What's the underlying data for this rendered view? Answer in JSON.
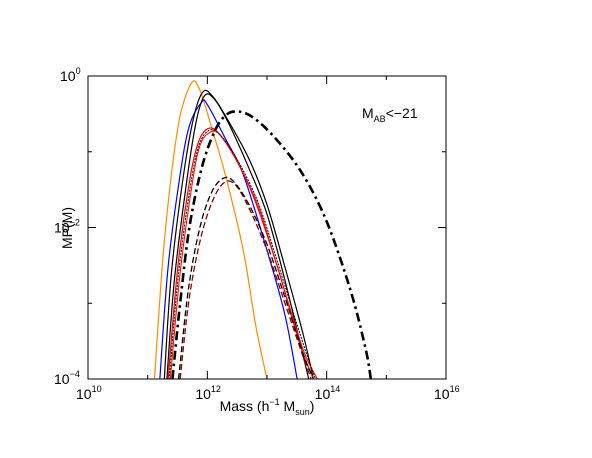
{
  "chart_data": {
    "type": "line",
    "title": "",
    "xlabel": {
      "main": "Mass (h",
      "exp": "−1",
      "mid": " M",
      "sub": "sun",
      "end": ")"
    },
    "ylabel": "MP(M)",
    "xscale": "log",
    "yscale": "log",
    "xlim": [
      10000000000.0,
      1e+16
    ],
    "ylim": [
      0.0001,
      1
    ],
    "x_ticks": [
      {
        "value": 10000000000.0,
        "base": "10",
        "exp": "10"
      },
      {
        "value": 1000000000000.0,
        "base": "10",
        "exp": "12"
      },
      {
        "value": 100000000000000.0,
        "base": "10",
        "exp": "14"
      },
      {
        "value": 1e+16,
        "base": "10",
        "exp": "16"
      }
    ],
    "y_ticks": [
      {
        "value": 1,
        "base": "10",
        "exp": "0"
      },
      {
        "value": 0.01,
        "base": "10",
        "exp": "−2"
      },
      {
        "value": 0.0001,
        "base": "10",
        "exp": "−4"
      }
    ],
    "annotation": {
      "main": "M",
      "sub": "AB",
      "rest": "<−21"
    },
    "grid": false,
    "legend": "none",
    "series": [
      {
        "color": "#ff8c00",
        "style": "solid",
        "width": 1.2,
        "points": [
          [
            130000000000.0,
            0.0001
          ],
          [
            180000000000.0,
            0.004
          ],
          [
            250000000000.0,
            0.05
          ],
          [
            350000000000.0,
            0.3
          ],
          [
            550000000000.0,
            0.82
          ],
          [
            750000000000.0,
            0.65
          ],
          [
            1200000000000.0,
            0.2
          ],
          [
            2000000000000.0,
            0.05
          ],
          [
            4000000000000.0,
            0.005
          ],
          [
            6500000000000.0,
            0.0005
          ],
          [
            10000000000000.0,
            0.0001
          ]
        ]
      },
      {
        "color": "#0000ff",
        "style": "solid",
        "width": 1.2,
        "points": [
          [
            160000000000.0,
            0.0001
          ],
          [
            220000000000.0,
            0.003
          ],
          [
            350000000000.0,
            0.05
          ],
          [
            500000000000.0,
            0.22
          ],
          [
            800000000000.0,
            0.45
          ],
          [
            1000000000000.0,
            0.42
          ],
          [
            2000000000000.0,
            0.15
          ],
          [
            4000000000000.0,
            0.05
          ],
          [
            10000000000000.0,
            0.005
          ],
          [
            20000000000000.0,
            0.0007
          ],
          [
            32000000000000.0,
            0.0001
          ]
        ]
      },
      {
        "color": "#000000",
        "style": "solid",
        "width": 1.2,
        "points": [
          [
            190000000000.0,
            0.0001
          ],
          [
            250000000000.0,
            0.0025
          ],
          [
            400000000000.0,
            0.05
          ],
          [
            600000000000.0,
            0.3
          ],
          [
            850000000000.0,
            0.62
          ],
          [
            1200000000000.0,
            0.55
          ],
          [
            2000000000000.0,
            0.3
          ],
          [
            5000000000000.0,
            0.08
          ],
          [
            10000000000000.0,
            0.02
          ],
          [
            20000000000000.0,
            0.003
          ],
          [
            40000000000000.0,
            0.0004
          ],
          [
            60000000000000.0,
            0.0001
          ]
        ]
      },
      {
        "color": "#000000",
        "style": "solid",
        "width": 1.2,
        "points": [
          [
            210000000000.0,
            0.0001
          ],
          [
            280000000000.0,
            0.002
          ],
          [
            450000000000.0,
            0.04
          ],
          [
            650000000000.0,
            0.25
          ],
          [
            900000000000.0,
            0.55
          ],
          [
            1300000000000.0,
            0.5
          ],
          [
            2200000000000.0,
            0.25
          ],
          [
            5000000000000.0,
            0.06
          ],
          [
            10000000000000.0,
            0.015
          ],
          [
            20000000000000.0,
            0.002
          ],
          [
            50000000000000.0,
            0.0001
          ]
        ]
      },
      {
        "color": "#ff0000",
        "style": "solid",
        "width": 1.2,
        "points": [
          [
            220000000000.0,
            0.0001
          ],
          [
            320000000000.0,
            0.003
          ],
          [
            500000000000.0,
            0.04
          ],
          [
            700000000000.0,
            0.13
          ],
          [
            1000000000000.0,
            0.2
          ],
          [
            1500000000000.0,
            0.18
          ],
          [
            3000000000000.0,
            0.08
          ],
          [
            6000000000000.0,
            0.025
          ],
          [
            15000000000000.0,
            0.003
          ],
          [
            35000000000000.0,
            0.0003
          ],
          [
            60000000000000.0,
            0.0001
          ]
        ]
      },
      {
        "color": "#ff0000",
        "style": "solid",
        "width": 1.0,
        "points": [
          [
            240000000000.0,
            0.0001
          ],
          [
            350000000000.0,
            0.0025
          ],
          [
            550000000000.0,
            0.035
          ],
          [
            750000000000.0,
            0.12
          ],
          [
            1100000000000.0,
            0.18
          ],
          [
            1600000000000.0,
            0.17
          ],
          [
            3000000000000.0,
            0.08
          ],
          [
            7000000000000.0,
            0.02
          ],
          [
            15000000000000.0,
            0.003
          ],
          [
            40000000000000.0,
            0.00025
          ],
          [
            70000000000000.0,
            0.0001
          ]
        ]
      },
      {
        "color": "#000000",
        "style": "dotted",
        "width": 1.0,
        "points": [
          [
            230000000000.0,
            0.0001
          ],
          [
            330000000000.0,
            0.0025
          ],
          [
            520000000000.0,
            0.035
          ],
          [
            720000000000.0,
            0.12
          ],
          [
            1050000000000.0,
            0.19
          ],
          [
            1600000000000.0,
            0.17
          ],
          [
            3000000000000.0,
            0.085
          ],
          [
            7000000000000.0,
            0.022
          ],
          [
            15000000000000.0,
            0.0035
          ],
          [
            40000000000000.0,
            0.0003
          ],
          [
            65000000000000.0,
            0.0001
          ]
        ]
      },
      {
        "color": "#8b0000",
        "style": "dashed",
        "width": 1.3,
        "points": [
          [
            350000000000.0,
            0.0001
          ],
          [
            500000000000.0,
            0.0012
          ],
          [
            800000000000.0,
            0.008
          ],
          [
            1300000000000.0,
            0.025
          ],
          [
            2000000000000.0,
            0.04
          ],
          [
            3000000000000.0,
            0.036
          ],
          [
            5000000000000.0,
            0.018
          ],
          [
            10000000000000.0,
            0.005
          ],
          [
            20000000000000.0,
            0.001
          ],
          [
            40000000000000.0,
            0.0002
          ],
          [
            55000000000000.0,
            0.0001
          ]
        ]
      },
      {
        "color": "#000000",
        "style": "dashed",
        "width": 1.3,
        "points": [
          [
            330000000000.0,
            0.0001
          ],
          [
            480000000000.0,
            0.0015
          ],
          [
            750000000000.0,
            0.01
          ],
          [
            1200000000000.0,
            0.03
          ],
          [
            1900000000000.0,
            0.045
          ],
          [
            2800000000000.0,
            0.04
          ],
          [
            5000000000000.0,
            0.02
          ],
          [
            10000000000000.0,
            0.006
          ],
          [
            20000000000000.0,
            0.0012
          ],
          [
            40000000000000.0,
            0.00022
          ],
          [
            60000000000000.0,
            0.0001
          ]
        ]
      },
      {
        "color": "#000000",
        "style": "dashdot",
        "width": 2.6,
        "points": [
          [
            260000000000.0,
            0.0001
          ],
          [
            350000000000.0,
            0.001
          ],
          [
            500000000000.0,
            0.01
          ],
          [
            800000000000.0,
            0.06
          ],
          [
            1300000000000.0,
            0.18
          ],
          [
            2000000000000.0,
            0.3
          ],
          [
            3200000000000.0,
            0.34
          ],
          [
            6000000000000.0,
            0.28
          ],
          [
            15000000000000.0,
            0.14
          ],
          [
            40000000000000.0,
            0.05
          ],
          [
            100000000000000.0,
            0.012
          ],
          [
            250000000000000.0,
            0.0015
          ],
          [
            450000000000000.0,
            0.00025
          ],
          [
            550000000000000.0,
            0.0001
          ]
        ]
      }
    ]
  }
}
